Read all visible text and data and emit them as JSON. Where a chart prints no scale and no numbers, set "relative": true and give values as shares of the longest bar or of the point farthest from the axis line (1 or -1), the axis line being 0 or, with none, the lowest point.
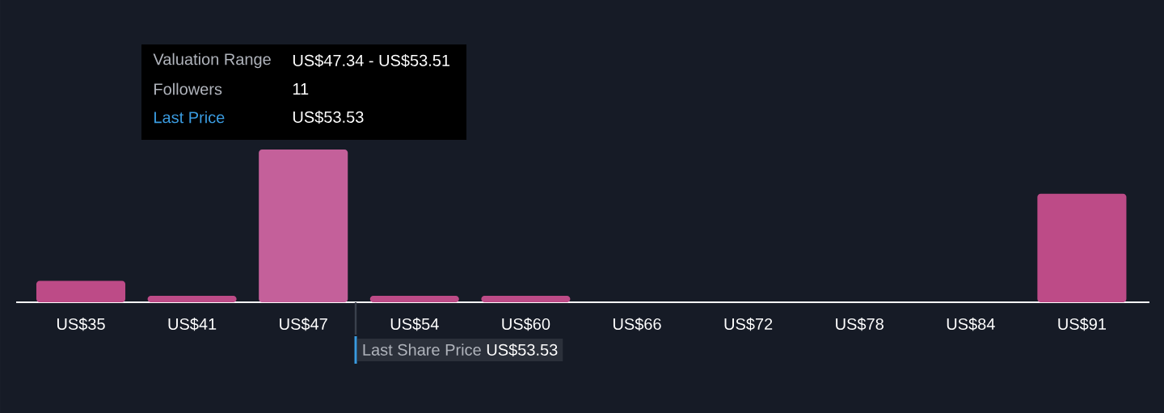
{
  "chart_data": {
    "type": "bar",
    "relative": true,
    "categories": [
      "US$35",
      "US$41",
      "US$47",
      "US$54",
      "US$60",
      "US$66",
      "US$72",
      "US$78",
      "US$84",
      "US$91"
    ],
    "values": [
      0.14,
      0.042,
      1,
      0.042,
      0.042,
      0,
      0,
      0,
      0,
      0.71
    ],
    "colors": [
      "#bd4b87",
      "#bd4b87",
      "#c4609a",
      "#bd4b87",
      "#bd4b87",
      "#bd4b87",
      "#bd4b87",
      "#bd4b87",
      "#bd4b87",
      "#bd4b87"
    ],
    "annotations": [
      "Valuation Range",
      "US$47.34 - US$53.51",
      "Followers",
      "11",
      "Last Price",
      "US$53.53",
      "Last Share Price",
      "US$53.53"
    ],
    "grid": false
  }
}
